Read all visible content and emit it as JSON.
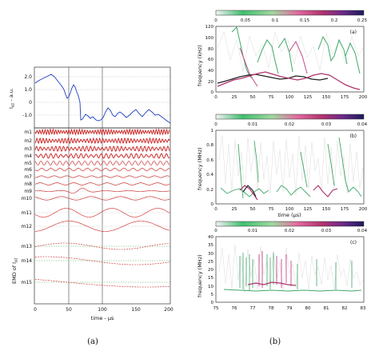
{
  "panel_a": {
    "y_label": "I_AT - a.u.",
    "y_label_main": "I",
    "y_label_sub": "AT",
    "y_label_rest": " - a.u.",
    "y_ticks": [
      "2.0",
      "1.0",
      "0",
      "-1.0"
    ],
    "mode_labels": [
      "m1",
      "m2",
      "m3",
      "m4",
      "m5",
      "m6",
      "m7",
      "m8",
      "m9",
      "m10",
      "m11",
      "m12",
      "m13",
      "m14",
      "m15"
    ],
    "emd_label_main": "EMD of I",
    "emd_label_sub": "AT",
    "x_ticks": [
      "0",
      "50",
      "100",
      "150",
      "200"
    ],
    "x_label": "time - μs",
    "caption": "(a)",
    "colors": {
      "signal": "#1f3fbf",
      "modes": "#cc1f1f",
      "residual": "#4caf50"
    }
  },
  "panel_b": {
    "colorbars": [
      {
        "ticks": [
          "0",
          "0.05",
          "0.1",
          "0.15",
          "0.2",
          "0.25"
        ]
      },
      {
        "ticks": [
          "0",
          "0.01",
          "0.02",
          "0.03",
          "0.04"
        ]
      },
      {
        "ticks": [
          "0",
          "0.01",
          "0.02",
          "0.03",
          "0.04"
        ]
      }
    ],
    "plot_a": {
      "tag": "(a)",
      "y_label": "frequency (kHz)",
      "y_ticks": [
        "120",
        "100",
        "80",
        "60",
        "40",
        "20",
        "0"
      ],
      "x_ticks": [
        "0",
        "25",
        "50",
        "75",
        "100",
        "125",
        "150",
        "175",
        "200"
      ]
    },
    "plot_b": {
      "tag": "(b)",
      "y_label": "frequency (MHz)",
      "y_ticks": [
        "1",
        "0.8",
        "0.6",
        "0.4",
        "0.2",
        "0"
      ],
      "x_ticks": [
        "0",
        "25",
        "50",
        "75",
        "100",
        "125",
        "150",
        "175",
        "200"
      ],
      "x_label": "time (μs)"
    },
    "plot_c": {
      "tag": "(c)",
      "y_label": "frequency (MHz)",
      "y_ticks": [
        "40",
        "35",
        "30",
        "25",
        "20",
        "15",
        "10",
        "5",
        "0"
      ],
      "x_ticks": [
        "75",
        "76",
        "77",
        "78",
        "79",
        "80",
        "81",
        "82",
        "83"
      ]
    },
    "caption": "(b)"
  }
}
